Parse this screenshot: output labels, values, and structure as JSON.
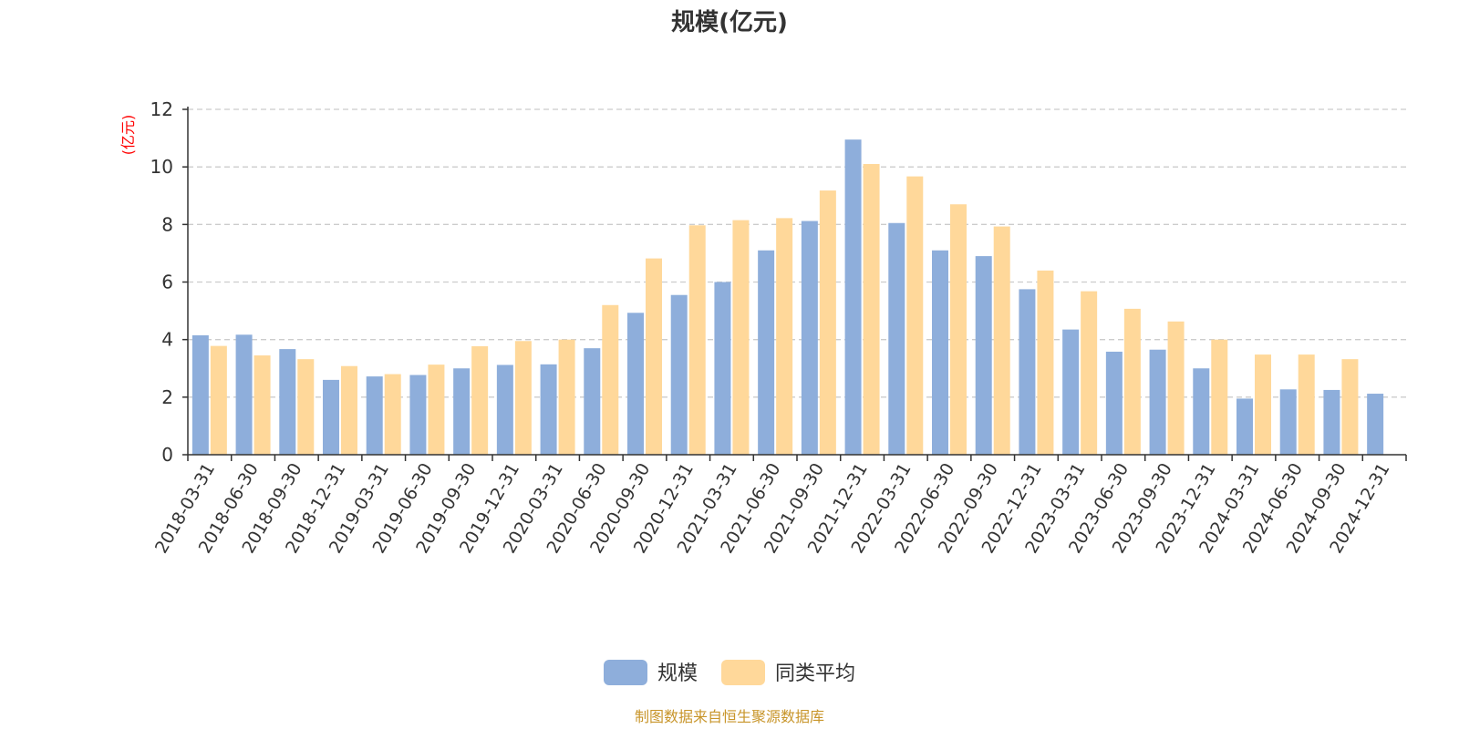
{
  "chart_data": {
    "type": "bar",
    "title": "规模(亿元)",
    "ylabel": "(亿元)",
    "ylim": [
      0,
      12
    ],
    "yticks": [
      0,
      2,
      4,
      6,
      8,
      10,
      12
    ],
    "grid": true,
    "legend_position": "bottom-center",
    "categories": [
      "2018-03-31",
      "2018-06-30",
      "2018-09-30",
      "2018-12-31",
      "2019-03-31",
      "2019-06-30",
      "2019-09-30",
      "2019-12-31",
      "2020-03-31",
      "2020-06-30",
      "2020-09-30",
      "2020-12-31",
      "2021-03-31",
      "2021-06-30",
      "2021-09-30",
      "2021-12-31",
      "2022-03-31",
      "2022-06-30",
      "2022-09-30",
      "2022-12-31",
      "2023-03-31",
      "2023-06-30",
      "2023-09-30",
      "2023-12-31",
      "2024-03-31",
      "2024-06-30",
      "2024-09-30",
      "2024-12-31"
    ],
    "series": [
      {
        "name": "规模",
        "color": "#8eaedb",
        "values": [
          4.15,
          4.17,
          3.67,
          2.6,
          2.72,
          2.77,
          3.0,
          3.12,
          3.14,
          3.7,
          4.93,
          5.55,
          6.0,
          7.1,
          8.12,
          10.95,
          8.05,
          7.1,
          6.9,
          5.75,
          4.35,
          3.58,
          3.65,
          3.0,
          1.95,
          2.27,
          2.25,
          2.12
        ]
      },
      {
        "name": "同类平均",
        "color": "#ffd89a",
        "values": [
          3.78,
          3.45,
          3.32,
          3.08,
          2.8,
          3.13,
          3.77,
          3.95,
          4.0,
          5.2,
          6.82,
          7.97,
          8.15,
          8.22,
          9.18,
          10.1,
          9.67,
          8.7,
          7.93,
          6.4,
          5.68,
          5.07,
          4.63,
          4.0,
          3.48,
          3.48,
          3.32,
          null
        ]
      }
    ]
  },
  "footer": {
    "source": "制图数据来自恒生聚源数据库"
  }
}
